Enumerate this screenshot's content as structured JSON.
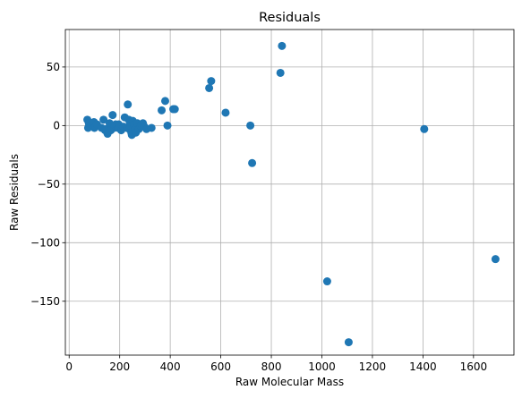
{
  "chart_data": {
    "type": "scatter",
    "title": "Residuals",
    "xlabel": "Raw Molecular Mass",
    "ylabel": "Raw Residuals",
    "xlim": [
      -15,
      1760
    ],
    "ylim": [
      -196,
      82
    ],
    "xticks": [
      0,
      200,
      400,
      600,
      800,
      1000,
      1200,
      1400,
      1600
    ],
    "yticks": [
      -150,
      -100,
      -50,
      0,
      50
    ],
    "ytick_labels": [
      "−150",
      "−100",
      "−50",
      "0",
      "50"
    ],
    "grid": true,
    "marker_color": "#1f77b4",
    "x": [
      72,
      75,
      78,
      88,
      92,
      95,
      98,
      100,
      104,
      110,
      128,
      136,
      142,
      147,
      152,
      160,
      165,
      172,
      178,
      180,
      184,
      194,
      196,
      206,
      215,
      220,
      228,
      232,
      236,
      238,
      240,
      243,
      246,
      248,
      252,
      256,
      260,
      264,
      270,
      276,
      282,
      286,
      292,
      298,
      306,
      326,
      366,
      380,
      389,
      412,
      418,
      554,
      562,
      619,
      717,
      724,
      836,
      842,
      1021,
      1106,
      1405,
      1687
    ],
    "y": [
      5,
      -2,
      2,
      1,
      0,
      -1,
      3,
      -2,
      -1,
      1,
      -2,
      5,
      -4,
      -3,
      -7,
      2,
      -4,
      9,
      -2,
      0,
      1,
      -2,
      1,
      -4,
      -1,
      7,
      -2,
      18,
      5,
      -3,
      3,
      0,
      -6,
      -8,
      4,
      1,
      -3,
      -6,
      2,
      -3,
      0,
      1,
      2,
      -1,
      -3,
      -2,
      13,
      21,
      0,
      14,
      14,
      32,
      38,
      11,
      0,
      -32,
      45,
      68,
      -133,
      -185,
      -3,
      -114
    ]
  }
}
